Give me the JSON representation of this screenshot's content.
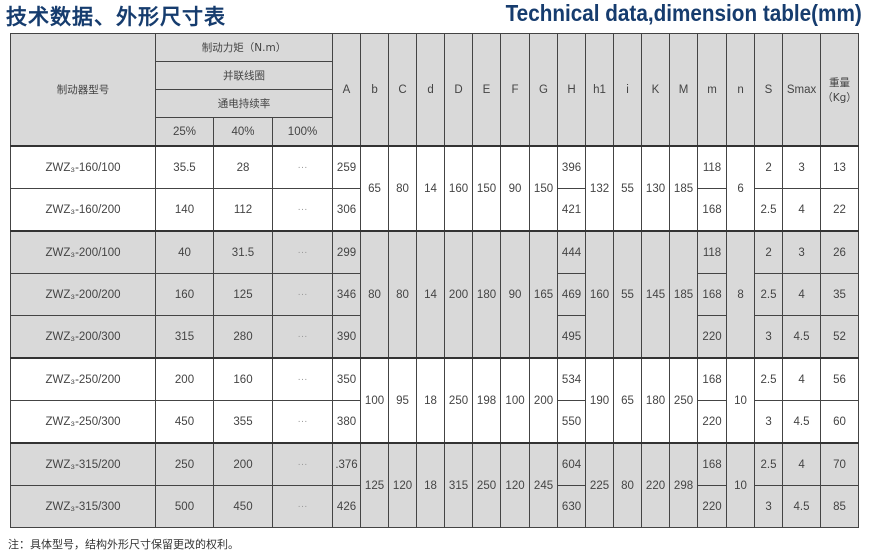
{
  "title_cn": "技术数据、外形尺寸表",
  "title_en": "Technical data,dimension table(mm)",
  "header": {
    "model": "制动器型号",
    "torque": "制动力矩（N.m）",
    "coil": "并联线圈",
    "duty": "通电持续率",
    "duty_levels": [
      "25%",
      "40%",
      "100%"
    ],
    "dims": [
      "A",
      "b",
      "C",
      "d",
      "D",
      "E",
      "F",
      "G",
      "H",
      "h1",
      "i",
      "K",
      "M",
      "m",
      "n",
      "S",
      "Smax"
    ],
    "weight": "重量（Kg）"
  },
  "colors": {
    "title": "#163c6e",
    "shade": "#d9d9d9"
  },
  "groups": [
    {
      "shaded": false,
      "shared": {
        "b": "65",
        "C": "80",
        "d": "14",
        "D": "160",
        "E": "150",
        "F": "90",
        "G": "150",
        "h1": "132",
        "i": "55",
        "K": "130",
        "M": "185",
        "n": "6"
      },
      "rows": [
        {
          "model": "ZWZ₃-160/100",
          "t25": "35.5",
          "t40": "28",
          "t100": "···",
          "A": "259",
          "H": "396",
          "m": "118",
          "S": "2",
          "Smax": "3",
          "kg": "13"
        },
        {
          "model": "ZWZ₃-160/200",
          "t25": "140",
          "t40": "112",
          "t100": "···",
          "A": "306",
          "H": "421",
          "m": "168",
          "S": "2.5",
          "Smax": "4",
          "kg": "22"
        }
      ]
    },
    {
      "shaded": true,
      "shared": {
        "b": "80",
        "C": "80",
        "d": "14",
        "D": "200",
        "E": "180",
        "F": "90",
        "G": "165",
        "h1": "160",
        "i": "55",
        "K": "145",
        "M": "185",
        "n": "8"
      },
      "rows": [
        {
          "model": "ZWZ₃-200/100",
          "t25": "40",
          "t40": "31.5",
          "t100": "···",
          "A": "299",
          "H": "444",
          "m": "118",
          "S": "2",
          "Smax": "3",
          "kg": "26"
        },
        {
          "model": "ZWZ₃-200/200",
          "t25": "160",
          "t40": "125",
          "t100": "···",
          "A": "346",
          "H": "469",
          "m": "168",
          "S": "2.5",
          "Smax": "4",
          "kg": "35"
        },
        {
          "model": "ZWZ₃-200/300",
          "t25": "315",
          "t40": "280",
          "t100": "···",
          "A": "390",
          "H": "495",
          "m": "220",
          "S": "3",
          "Smax": "4.5",
          "kg": "52"
        }
      ]
    },
    {
      "shaded": false,
      "shared": {
        "b": "100",
        "C": "95",
        "d": "18",
        "D": "250",
        "E": "198",
        "F": "100",
        "G": "200",
        "h1": "190",
        "i": "65",
        "K": "180",
        "M": "250",
        "n": "10"
      },
      "rows": [
        {
          "model": "ZWZ₃-250/200",
          "t25": "200",
          "t40": "160",
          "t100": "···",
          "A": "350",
          "H": "534",
          "m": "168",
          "S": "2.5",
          "Smax": "4",
          "kg": "56"
        },
        {
          "model": "ZWZ₃-250/300",
          "t25": "450",
          "t40": "355",
          "t100": "···",
          "A": "380",
          "H": "550",
          "m": "220",
          "S": "3",
          "Smax": "4.5",
          "kg": "60"
        }
      ]
    },
    {
      "shaded": true,
      "shared": {
        "b": "125",
        "C": "120",
        "d": "18",
        "D": "315",
        "E": "250",
        "F": "120",
        "G": "245",
        "h1": "225",
        "i": "80",
        "K": "220",
        "M": "298",
        "n": "10"
      },
      "rows": [
        {
          "model": "ZWZ₃-315/200",
          "t25": "250",
          "t40": "200",
          "t100": "···",
          "A": ".376",
          "H": "604",
          "m": "168",
          "S": "2.5",
          "Smax": "4",
          "kg": "70"
        },
        {
          "model": "ZWZ₃-315/300",
          "t25": "500",
          "t40": "450",
          "t100": "···",
          "A": "426",
          "H": "630",
          "m": "220",
          "S": "3",
          "Smax": "4.5",
          "kg": "85"
        }
      ]
    }
  ],
  "note": "注：具体型号，结构外形尺寸保留更改的权利。"
}
